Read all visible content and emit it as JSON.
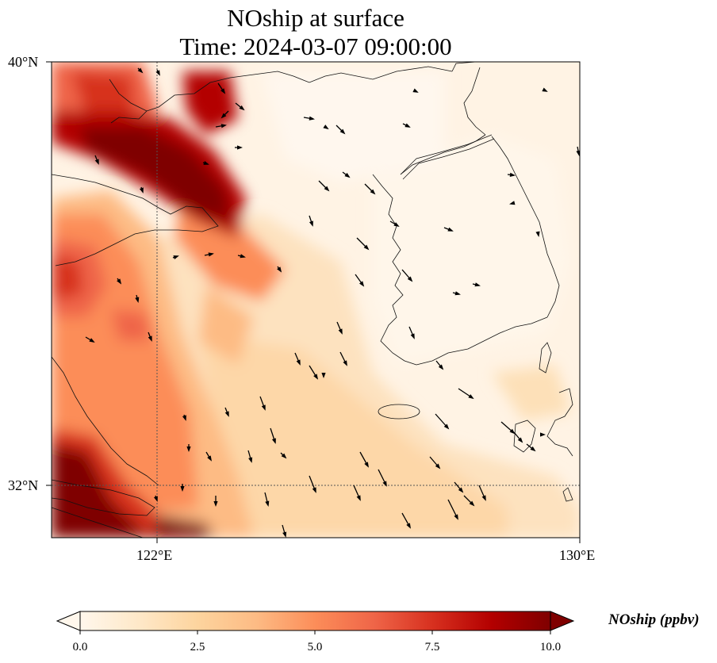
{
  "title_line1": "NOship at surface",
  "title_line2": "Time: 2024-03-07 09:00:00",
  "axes": {
    "lat_ticks": [
      "40°N",
      "32°N"
    ],
    "lon_ticks": [
      "122°E",
      "130°E"
    ]
  },
  "colorbar": {
    "label": "NOship (ppbv)",
    "ticks": [
      "0.0",
      "2.5",
      "5.0",
      "7.5",
      "10.0"
    ],
    "vmin": 0,
    "vmax": 10,
    "extend": "both",
    "colormap": [
      "#fff7ec",
      "#fee8c8",
      "#fdd49e",
      "#fdbb84",
      "#fc8d59",
      "#ef6548",
      "#d7301f",
      "#b30000",
      "#7f0000"
    ]
  },
  "map_data": {
    "type": "gridded concentration with wind vectors",
    "lon_range": [
      120,
      130
    ],
    "lat_range": [
      31,
      40
    ],
    "gridlines": [
      "122°E",
      "32°N"
    ],
    "high_concentration_regions": [
      "Bohai Sea to Yellow Sea shipping lane near 121–124°E, 37.5–39°N",
      "Coast of Shandong and Jiangsu near 120–121.5°E",
      "Yangtze River estuary near 120–122.5°E, 31–32°N"
    ]
  }
}
